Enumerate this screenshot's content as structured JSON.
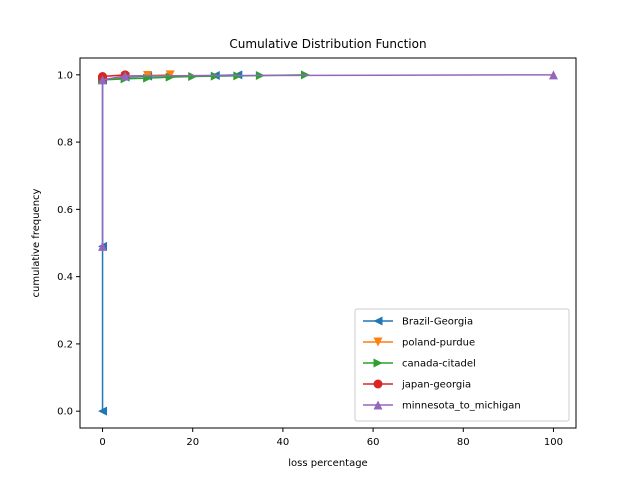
{
  "chart_data": {
    "type": "line",
    "title": "Cumulative Distribution Function",
    "xlabel": "loss percentage",
    "ylabel": "cumulative frequency",
    "xlim": [
      -5,
      105
    ],
    "ylim": [
      -0.05,
      1.05
    ],
    "xticks": [
      0,
      20,
      40,
      60,
      80,
      100
    ],
    "yticks": [
      0.0,
      0.2,
      0.4,
      0.6,
      0.8,
      1.0
    ],
    "xtick_labels": [
      "0",
      "20",
      "40",
      "60",
      "80",
      "100"
    ],
    "ytick_labels": [
      "0.0",
      "0.2",
      "0.4",
      "0.6",
      "0.8",
      "1.0"
    ],
    "legend_position": "bottom-right",
    "series": [
      {
        "name": "Brazil-Georgia",
        "color": "#1f77b4",
        "marker": "triangle-left",
        "points": [
          [
            0,
            0.0
          ],
          [
            0,
            0.49
          ],
          [
            0,
            0.985
          ],
          [
            5,
            0.993
          ],
          [
            10,
            0.996
          ],
          [
            25,
            0.998
          ],
          [
            30,
            1.0
          ]
        ]
      },
      {
        "name": "poland-purdue",
        "color": "#ff7f0e",
        "marker": "triangle-down",
        "points": [
          [
            0,
            0.985
          ],
          [
            5,
            0.995
          ],
          [
            10,
            0.998
          ],
          [
            15,
            1.0
          ]
        ]
      },
      {
        "name": "canada-citadel",
        "color": "#2ca02c",
        "marker": "triangle-right",
        "points": [
          [
            0,
            0.985
          ],
          [
            5,
            0.988
          ],
          [
            10,
            0.99
          ],
          [
            15,
            0.993
          ],
          [
            20,
            0.995
          ],
          [
            25,
            0.996
          ],
          [
            30,
            0.997
          ],
          [
            35,
            0.998
          ],
          [
            45,
            1.0
          ]
        ]
      },
      {
        "name": "japan-georgia",
        "color": "#d62728",
        "marker": "circle",
        "points": [
          [
            0,
            0.99
          ],
          [
            0,
            0.995
          ],
          [
            5,
            1.0
          ]
        ]
      },
      {
        "name": "minnesota_to_michigan",
        "color": "#9467bd",
        "marker": "triangle-up",
        "points": [
          [
            0,
            0.49
          ],
          [
            0,
            0.985
          ],
          [
            5,
            0.997
          ],
          [
            100,
            1.0
          ]
        ]
      }
    ]
  }
}
